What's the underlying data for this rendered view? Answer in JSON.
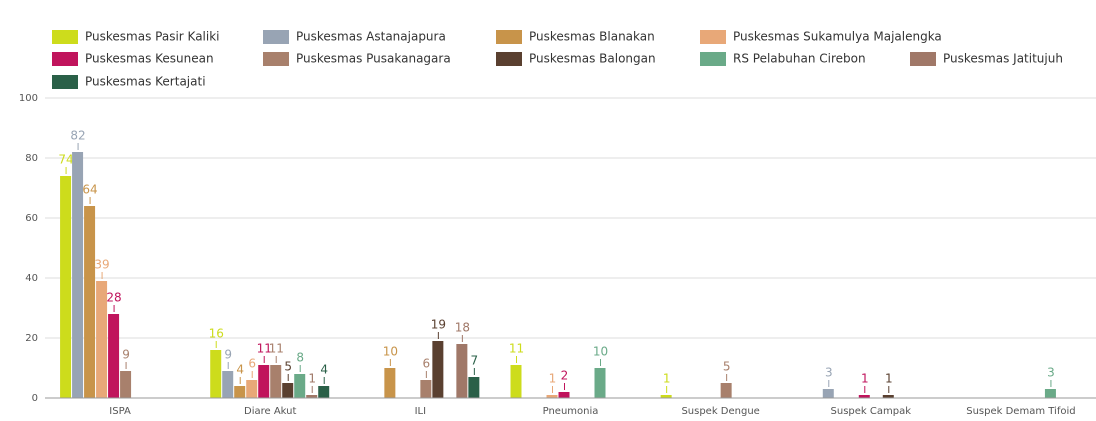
{
  "chart_data": {
    "type": "bar",
    "categories": [
      "ISPA",
      "Diare Akut",
      "ILI",
      "Pneumonia",
      "Suspek Dengue",
      "Suspek Campak",
      "Suspek Demam Tifoid"
    ],
    "series": [
      {
        "name": "Puskesmas Pasir Kaliki",
        "color": "#cddc1c",
        "values": [
          74,
          16,
          null,
          11,
          1,
          null,
          null
        ]
      },
      {
        "name": "Puskesmas Astanajapura",
        "color": "#98a4b4",
        "values": [
          82,
          9,
          null,
          null,
          null,
          3,
          null
        ]
      },
      {
        "name": "Puskesmas Blanakan",
        "color": "#c8944a",
        "values": [
          64,
          4,
          10,
          null,
          null,
          null,
          null
        ]
      },
      {
        "name": "Puskesmas Sukamulya Majalengka",
        "color": "#e8a878",
        "values": [
          39,
          6,
          null,
          1,
          null,
          null,
          null
        ]
      },
      {
        "name": "Puskesmas Kesunean",
        "color": "#c0145c",
        "values": [
          28,
          11,
          null,
          2,
          null,
          1,
          null
        ]
      },
      {
        "name": "Puskesmas Pusakanagara",
        "color": "#a8806c",
        "values": [
          9,
          11,
          6,
          null,
          5,
          null,
          null
        ]
      },
      {
        "name": "Puskesmas Balongan",
        "color": "#5a4030",
        "values": [
          null,
          5,
          19,
          null,
          null,
          1,
          null
        ]
      },
      {
        "name": "RS Pelabuhan Cirebon",
        "color": "#6aaa88",
        "values": [
          null,
          8,
          null,
          10,
          null,
          null,
          3
        ]
      },
      {
        "name": "Puskesmas Jatitujuh",
        "color": "#a07868",
        "values": [
          null,
          1,
          18,
          null,
          null,
          null,
          null
        ]
      },
      {
        "name": "Puskesmas Kertajati",
        "color": "#2a6048",
        "values": [
          null,
          4,
          7,
          null,
          null,
          null,
          null
        ]
      }
    ],
    "ylim": [
      0,
      100
    ],
    "yticks": [
      0,
      20,
      40,
      60,
      80,
      100
    ],
    "grid": true
  }
}
